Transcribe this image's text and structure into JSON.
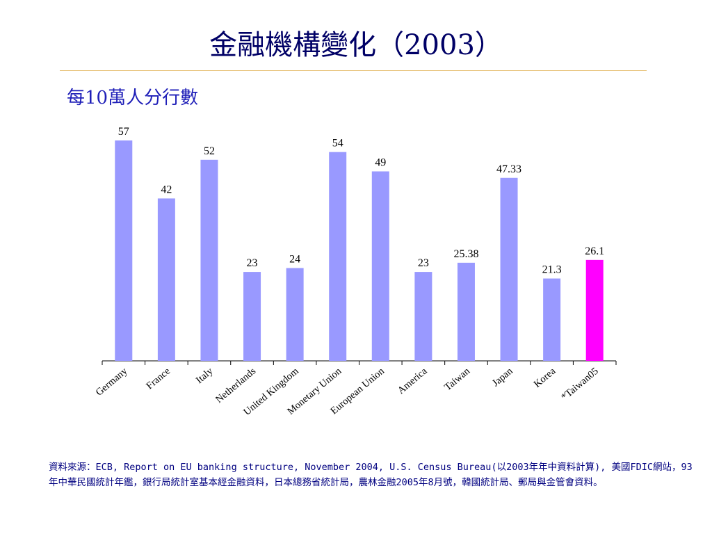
{
  "page": {
    "title": "金融機構變化（2003）",
    "subtitle": "每10萬人分行數",
    "source": "資料來源：ECB, Report on EU banking structure, November 2004, U.S. Census Bureau(以2003年年中資料計算), 美國FDIC網站，93年中華民國統計年鑑，銀行局統計室基本經金融資料，日本總務省統計局，農林金融2005年8月號，韓國統計局、郵局與金管會資料。"
  },
  "colors": {
    "bar": "#9999ff",
    "highlight": "#ff00ff",
    "title": "#000066",
    "subtitle": "#1f1fb8",
    "rule": "#e8c37a",
    "source": "#000080"
  },
  "chart_data": {
    "type": "bar",
    "categories": [
      "Germany",
      "France",
      "Italy",
      "Netherlands",
      "United Kingdom",
      "Monetary Union",
      "European Union",
      "America",
      "Taiwan",
      "Japan",
      "Korea",
      "*Taiwan05"
    ],
    "values": [
      57,
      42,
      52,
      23,
      24,
      54,
      49,
      23,
      25.38,
      47.33,
      21.3,
      26.1
    ],
    "data_labels": [
      "57",
      "42",
      "52",
      "23",
      "24",
      "54",
      "49",
      "23",
      "25.38",
      "47.33",
      "21.3",
      "26.1"
    ],
    "highlight_index": 11,
    "ylim": [
      0,
      57
    ],
    "xlabel": "",
    "ylabel": "",
    "grid": false,
    "legend": "none"
  }
}
